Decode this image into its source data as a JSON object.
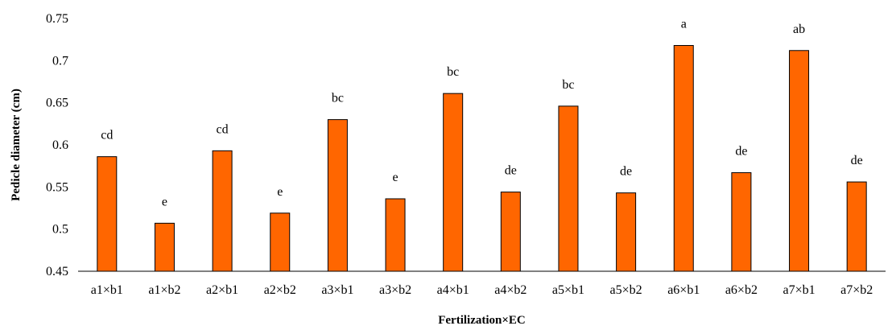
{
  "chart_data": {
    "type": "bar",
    "xlabel": "Fertilization×EC",
    "ylabel": "Pedicle diameter (cm)",
    "ylim": [
      0.45,
      0.75
    ],
    "yticks": [
      "0.45",
      "0.5",
      "0.55",
      "0.6",
      "0.65",
      "0.7",
      "0.75"
    ],
    "categories": [
      "a1×b1",
      "a1×b2",
      "a2×b1",
      "a2×b2",
      "a3×b1",
      "a3×b2",
      "a4×b1",
      "a4×b2",
      "a5×b1",
      "a5×b2",
      "a6×b1",
      "a6×b2",
      "a7×b1",
      "a7×b2"
    ],
    "values": [
      0.586,
      0.507,
      0.593,
      0.519,
      0.63,
      0.536,
      0.661,
      0.544,
      0.646,
      0.543,
      0.718,
      0.567,
      0.712,
      0.556
    ],
    "letters": [
      "cd",
      "e",
      "cd",
      "e",
      "bc",
      "e",
      "bc",
      "de",
      "bc",
      "de",
      "a",
      "de",
      "ab",
      "de"
    ],
    "grid": false,
    "bar_color": "#FF6600",
    "bar_edge_color": "#000000"
  }
}
